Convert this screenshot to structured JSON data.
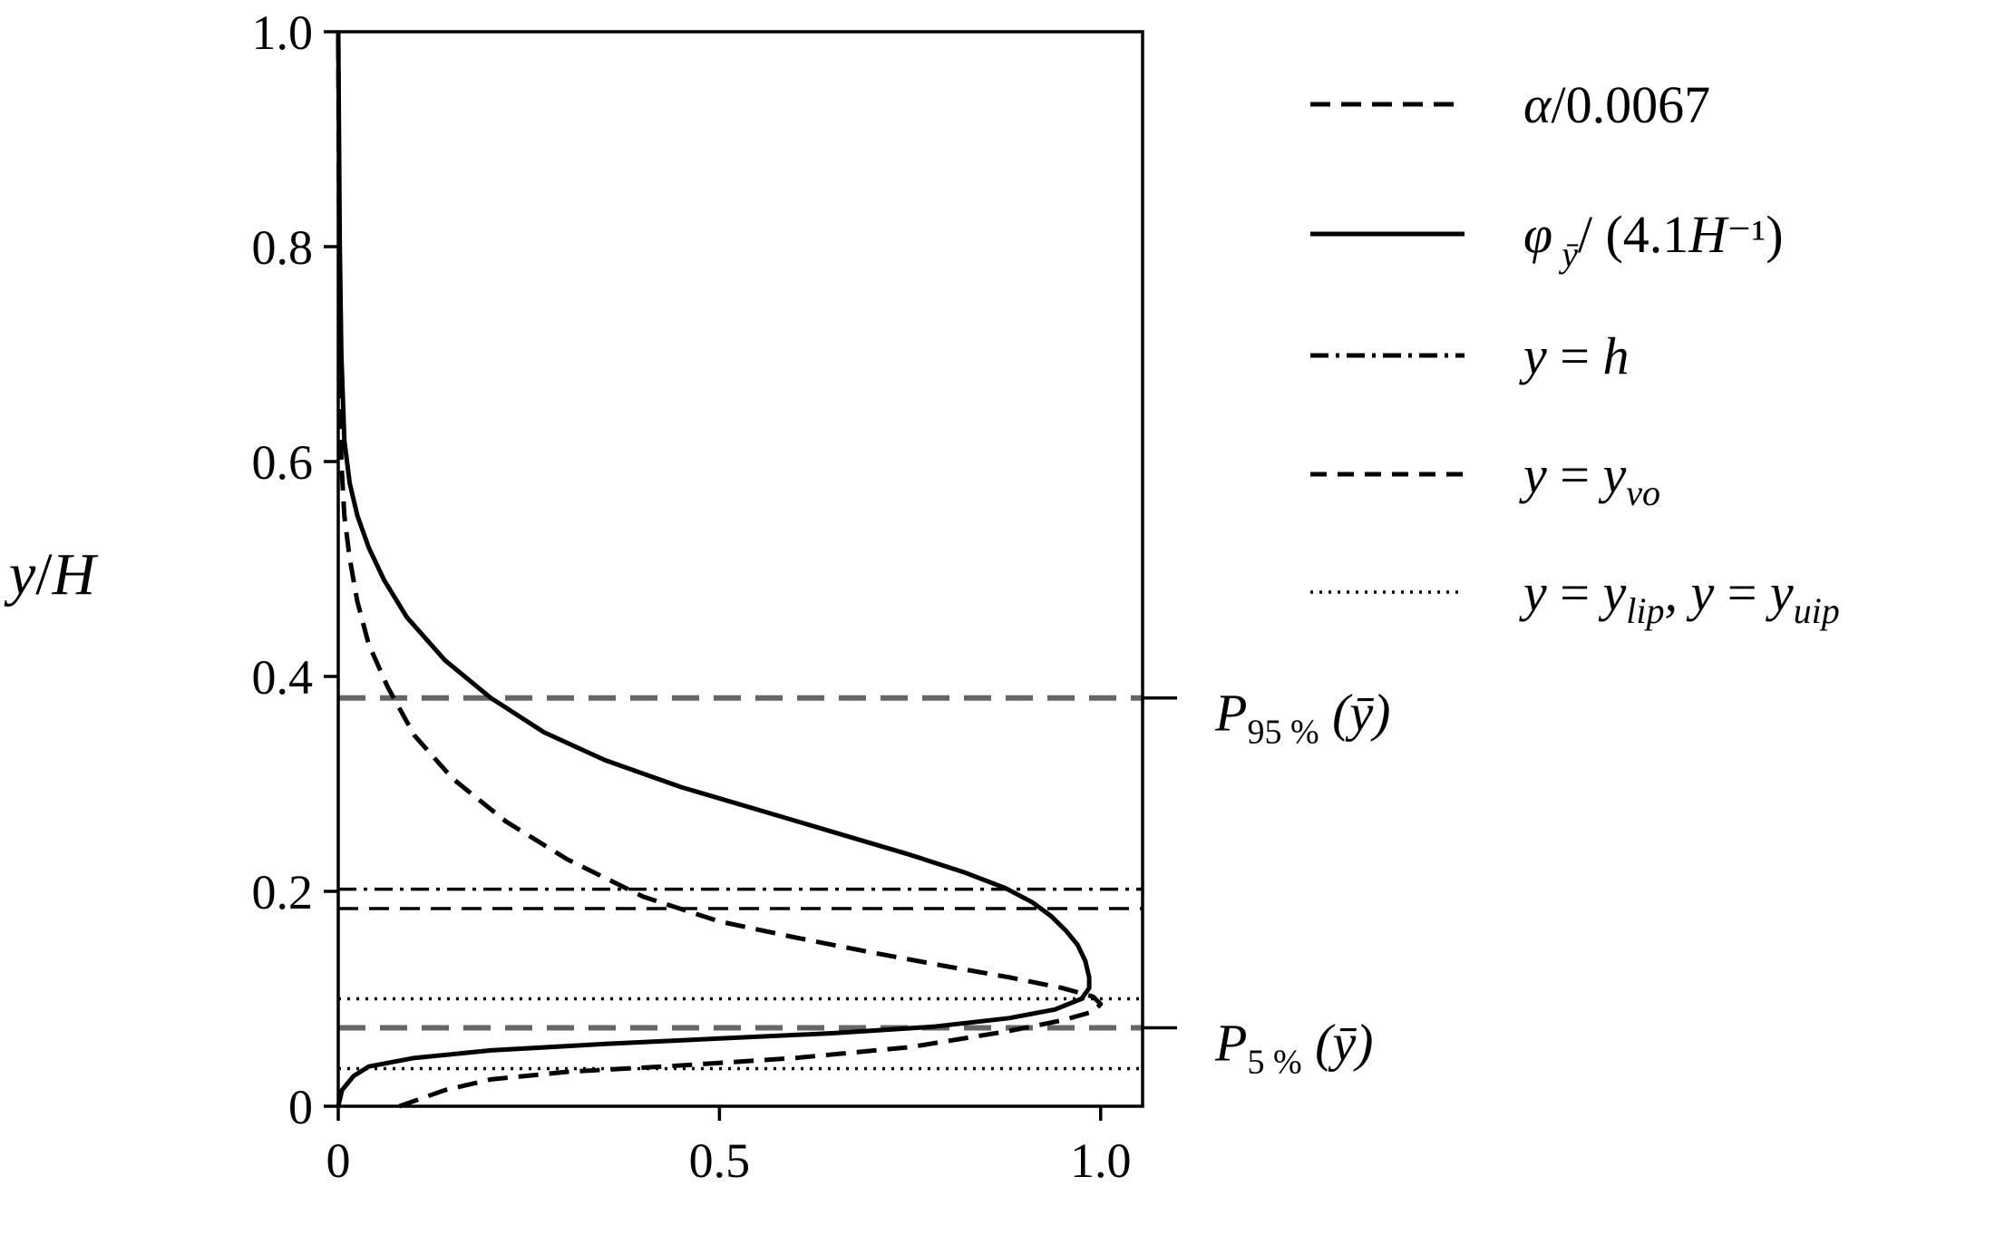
{
  "chart_data": {
    "type": "line",
    "title": "",
    "xlabel": "",
    "ylabel": "y/H",
    "xlim": [
      0,
      1.055
    ],
    "ylim": [
      0,
      1.0
    ],
    "grid": false,
    "legend_position": "outside-right-top",
    "x_ticks": [
      {
        "value": 0,
        "label": "0"
      },
      {
        "value": 0.5,
        "label": "0.5"
      },
      {
        "value": 1.0,
        "label": "1.0"
      }
    ],
    "y_ticks": [
      {
        "value": 0,
        "label": "0"
      },
      {
        "value": 0.2,
        "label": "0.2"
      },
      {
        "value": 0.4,
        "label": "0.4"
      },
      {
        "value": 0.6,
        "label": "0.6"
      },
      {
        "value": 0.8,
        "label": "0.8"
      },
      {
        "value": 1.0,
        "label": "1.0"
      }
    ],
    "series": [
      {
        "name": "α/0.0067",
        "style": "dashed",
        "color": "#000000",
        "points": [
          [
            0.08,
            0.0
          ],
          [
            0.14,
            0.015
          ],
          [
            0.2,
            0.025
          ],
          [
            0.3,
            0.032
          ],
          [
            0.45,
            0.038
          ],
          [
            0.6,
            0.045
          ],
          [
            0.75,
            0.055
          ],
          [
            0.88,
            0.07
          ],
          [
            0.95,
            0.08
          ],
          [
            0.99,
            0.088
          ],
          [
            1.0,
            0.095
          ],
          [
            0.99,
            0.102
          ],
          [
            0.95,
            0.11
          ],
          [
            0.88,
            0.12
          ],
          [
            0.8,
            0.13
          ],
          [
            0.7,
            0.143
          ],
          [
            0.6,
            0.157
          ],
          [
            0.5,
            0.172
          ],
          [
            0.4,
            0.195
          ],
          [
            0.3,
            0.23
          ],
          [
            0.22,
            0.265
          ],
          [
            0.15,
            0.305
          ],
          [
            0.1,
            0.345
          ],
          [
            0.065,
            0.39
          ],
          [
            0.04,
            0.43
          ],
          [
            0.025,
            0.47
          ],
          [
            0.015,
            0.51
          ],
          [
            0.008,
            0.55
          ],
          [
            0.004,
            0.6
          ],
          [
            0.002,
            0.7
          ],
          [
            0.001,
            0.85
          ],
          [
            0.0,
            1.0
          ]
        ]
      },
      {
        "name": "φ ȳ/ (4.1H⁻¹)",
        "style": "solid",
        "color": "#000000",
        "points": [
          [
            0.0,
            0.0
          ],
          [
            0.005,
            0.015
          ],
          [
            0.02,
            0.028
          ],
          [
            0.04,
            0.037
          ],
          [
            0.1,
            0.045
          ],
          [
            0.2,
            0.052
          ],
          [
            0.35,
            0.058
          ],
          [
            0.5,
            0.063
          ],
          [
            0.65,
            0.068
          ],
          [
            0.78,
            0.074
          ],
          [
            0.88,
            0.082
          ],
          [
            0.94,
            0.09
          ],
          [
            0.975,
            0.1
          ],
          [
            0.985,
            0.11
          ],
          [
            0.985,
            0.12
          ],
          [
            0.98,
            0.135
          ],
          [
            0.97,
            0.15
          ],
          [
            0.955,
            0.163
          ],
          [
            0.935,
            0.177
          ],
          [
            0.91,
            0.19
          ],
          [
            0.875,
            0.203
          ],
          [
            0.82,
            0.218
          ],
          [
            0.75,
            0.234
          ],
          [
            0.65,
            0.255
          ],
          [
            0.55,
            0.276
          ],
          [
            0.45,
            0.297
          ],
          [
            0.35,
            0.322
          ],
          [
            0.27,
            0.348
          ],
          [
            0.2,
            0.38
          ],
          [
            0.14,
            0.415
          ],
          [
            0.09,
            0.455
          ],
          [
            0.06,
            0.49
          ],
          [
            0.04,
            0.52
          ],
          [
            0.025,
            0.55
          ],
          [
            0.015,
            0.58
          ],
          [
            0.008,
            0.62
          ],
          [
            0.004,
            0.7
          ],
          [
            0.002,
            0.8
          ],
          [
            0.0,
            1.0
          ]
        ]
      }
    ],
    "hlines": [
      {
        "name": "y = h",
        "y": 0.202,
        "style": "dashdot",
        "color": "#000000",
        "x_end": 1.055
      },
      {
        "name": "y = y_vo",
        "y": 0.184,
        "style": "dashed",
        "color": "#000000",
        "x_end": 1.055
      },
      {
        "name": "y = y_lip",
        "y": 0.1,
        "style": "dotted",
        "color": "#000000",
        "x_end": 1.055
      },
      {
        "name": "y = y_uip",
        "y": 0.035,
        "style": "dotted",
        "color": "#000000",
        "x_end": 1.055
      },
      {
        "name": "P95%",
        "y": 0.38,
        "style": "dashed-gray",
        "color": "#666666",
        "x_end": 1.055
      },
      {
        "name": "P5%",
        "y": 0.073,
        "style": "dashed-gray",
        "color": "#666666",
        "x_end": 1.055
      }
    ],
    "legend": [
      {
        "style": "dashed",
        "label": "α/0.0067"
      },
      {
        "style": "solid",
        "label": "φ ȳ/ (4.1H⁻¹)"
      },
      {
        "style": "dashdot",
        "label": "y = h"
      },
      {
        "style": "dashed-short",
        "label": "y = y_vo"
      },
      {
        "style": "dotted",
        "label": "y = y_lip, y = y_uip"
      }
    ],
    "percentile_labels": [
      {
        "y": 0.38,
        "main": "P",
        "sub": "95 %",
        "arg": "(ȳ)"
      },
      {
        "y": 0.073,
        "main": "P",
        "sub": "5 %",
        "arg": "(ȳ)"
      }
    ]
  }
}
